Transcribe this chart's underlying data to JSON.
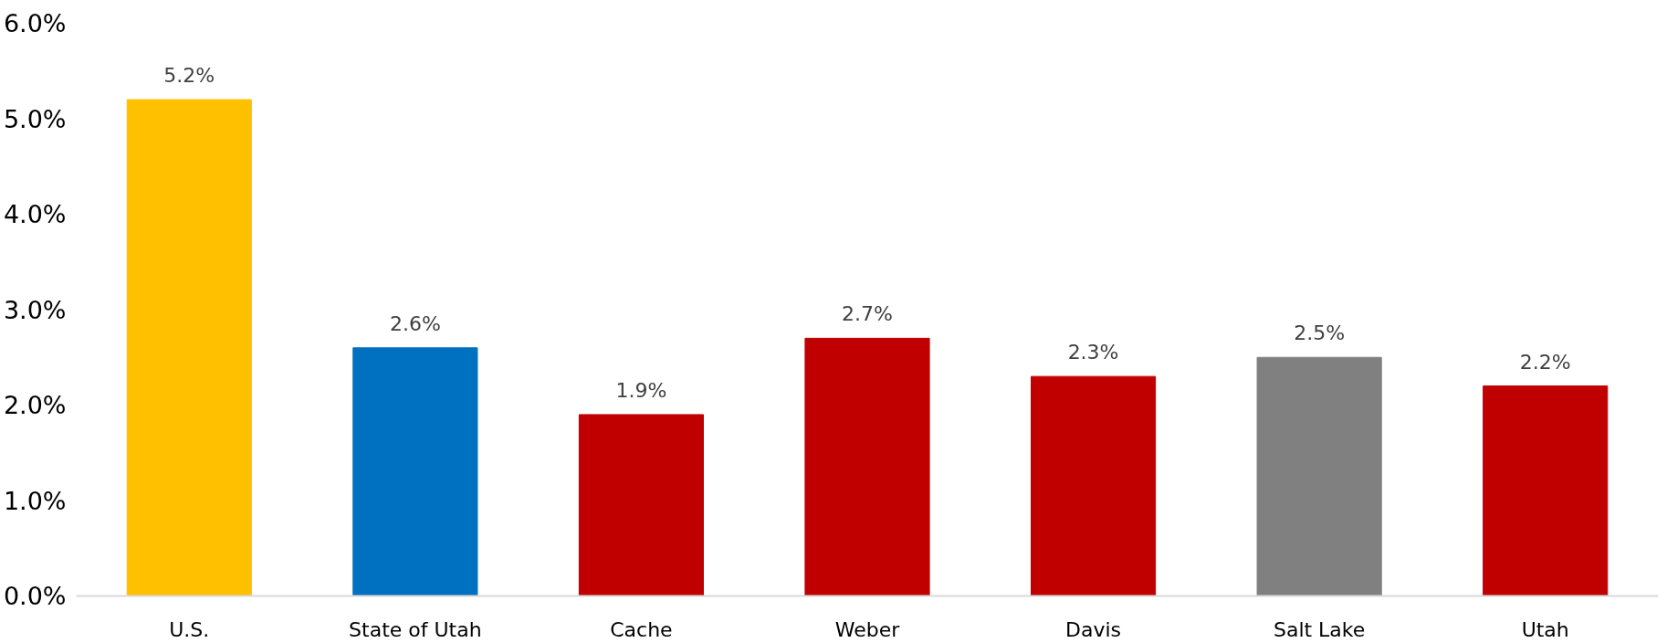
{
  "chart_data": {
    "type": "bar",
    "categories": [
      "U.S.",
      "State of Utah",
      "Cache",
      "Weber",
      "Davis",
      "Salt Lake",
      "Utah"
    ],
    "values": [
      5.2,
      2.6,
      1.9,
      2.7,
      2.3,
      2.5,
      2.2
    ],
    "colors": [
      "#ffc000",
      "#0070c0",
      "#c00000",
      "#c00000",
      "#c00000",
      "#808080",
      "#c00000"
    ],
    "value_labels": [
      "5.2%",
      "2.6%",
      "1.9%",
      "2.7%",
      "2.3%",
      "2.5%",
      "2.2%"
    ],
    "ylim": [
      0,
      6
    ],
    "yticks": [
      {
        "value": 0,
        "label": "0.0%"
      },
      {
        "value": 1,
        "label": "1.0%"
      },
      {
        "value": 2,
        "label": "2.0%"
      },
      {
        "value": 3,
        "label": "3.0%"
      },
      {
        "value": 4,
        "label": "4.0%"
      },
      {
        "value": 5,
        "label": "5.0%"
      },
      {
        "value": 6,
        "label": "6.0%"
      }
    ],
    "grid": false
  }
}
